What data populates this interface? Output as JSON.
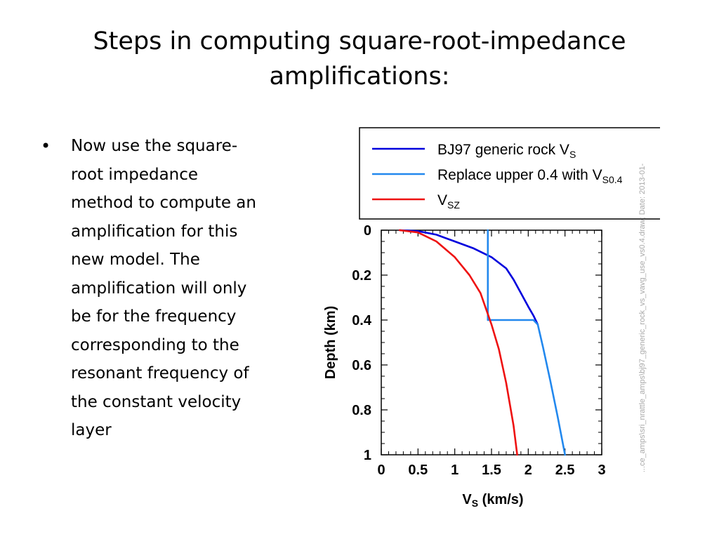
{
  "slide": {
    "title_lines": [
      "Steps in computing square-root-impedance",
      "amplifications:"
    ],
    "bullet": "•",
    "body_lines": [
      "Now use the square-",
      "root impedance",
      "method to compute an",
      "amplification for this",
      "new model.  The",
      "amplification will only",
      "be for the frequency",
      "corresponding to the",
      "resonant frequency of",
      "the constant velocity",
      "layer"
    ],
    "watermark": "...ce_amps\\sri_nrattle_amps\\bj97_generic_rock_vs_vavg_use_vs0.4.draw; Date: 2013-01-"
  },
  "chart_data": {
    "type": "line",
    "xlabel": "V",
    "xlabel_sub": "S",
    "xlabel_unit": " (km/s)",
    "ylabel": "Depth (km)",
    "xlim": [
      0,
      3
    ],
    "ylim": [
      1,
      0
    ],
    "y_inverted": true,
    "xticks": [
      "0",
      "0.5",
      "1",
      "1.5",
      "2",
      "2.5",
      "3"
    ],
    "yticks": [
      "0",
      "0.2",
      "0.4",
      "0.6",
      "0.8",
      "1"
    ],
    "xtick_values": [
      0,
      0.5,
      1,
      1.5,
      2,
      2.5,
      3
    ],
    "ytick_values": [
      0,
      0.2,
      0.4,
      0.6,
      0.8,
      1
    ],
    "grid": false,
    "legend_position": "top",
    "series": [
      {
        "name": "BJ97 generic rock V",
        "name_sub": "S",
        "color": "#0000dd",
        "x": [
          0.25,
          0.5,
          0.75,
          1.0,
          1.25,
          1.5,
          1.7,
          1.8,
          1.9,
          2.0,
          2.07,
          2.13
        ],
        "y": [
          0,
          0.004,
          0.02,
          0.05,
          0.08,
          0.12,
          0.17,
          0.22,
          0.28,
          0.34,
          0.38,
          0.42
        ]
      },
      {
        "name": "Replace upper 0.4 with V",
        "name_sub": "S0.4",
        "color": "#2288ee",
        "x": [
          1.45,
          1.45,
          2.07,
          2.13,
          2.2,
          2.3,
          2.4,
          2.5
        ],
        "y": [
          0,
          0.4,
          0.4,
          0.42,
          0.52,
          0.67,
          0.83,
          1.0
        ]
      },
      {
        "name": "V",
        "name_sub": "SZ",
        "color": "#ee1111",
        "x": [
          0.25,
          0.5,
          0.75,
          1.0,
          1.2,
          1.35,
          1.5,
          1.6,
          1.7,
          1.8,
          1.85
        ],
        "y": [
          0,
          0.01,
          0.05,
          0.12,
          0.2,
          0.28,
          0.42,
          0.53,
          0.68,
          0.87,
          1.0
        ]
      }
    ]
  }
}
